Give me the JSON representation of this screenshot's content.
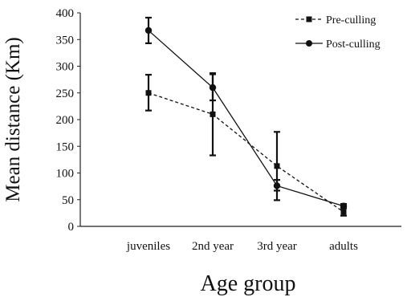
{
  "chart_data": {
    "type": "line",
    "title": "",
    "xlabel": "Age group",
    "ylabel": "Mean distance (Km)",
    "categories": [
      "juveniles",
      "2nd year",
      "3rd year",
      "adults"
    ],
    "ylim": [
      0,
      400
    ],
    "yticks": [
      0,
      50,
      100,
      150,
      200,
      250,
      300,
      350,
      400
    ],
    "grid": false,
    "legend_position": "top-right",
    "series": [
      {
        "name": "Pre-culling",
        "style": "dashed",
        "marker": "square",
        "color": "#111111",
        "values": [
          250,
          210,
          113,
          27
        ],
        "error_low": [
          217,
          133,
          49,
          20
        ],
        "error_high": [
          284,
          287,
          177,
          35
        ]
      },
      {
        "name": "Post-culling",
        "style": "solid",
        "marker": "circle",
        "color": "#111111",
        "values": [
          367,
          260,
          76,
          38
        ],
        "error_low": [
          343,
          236,
          67,
          34
        ],
        "error_high": [
          391,
          285,
          87,
          42
        ]
      }
    ]
  }
}
